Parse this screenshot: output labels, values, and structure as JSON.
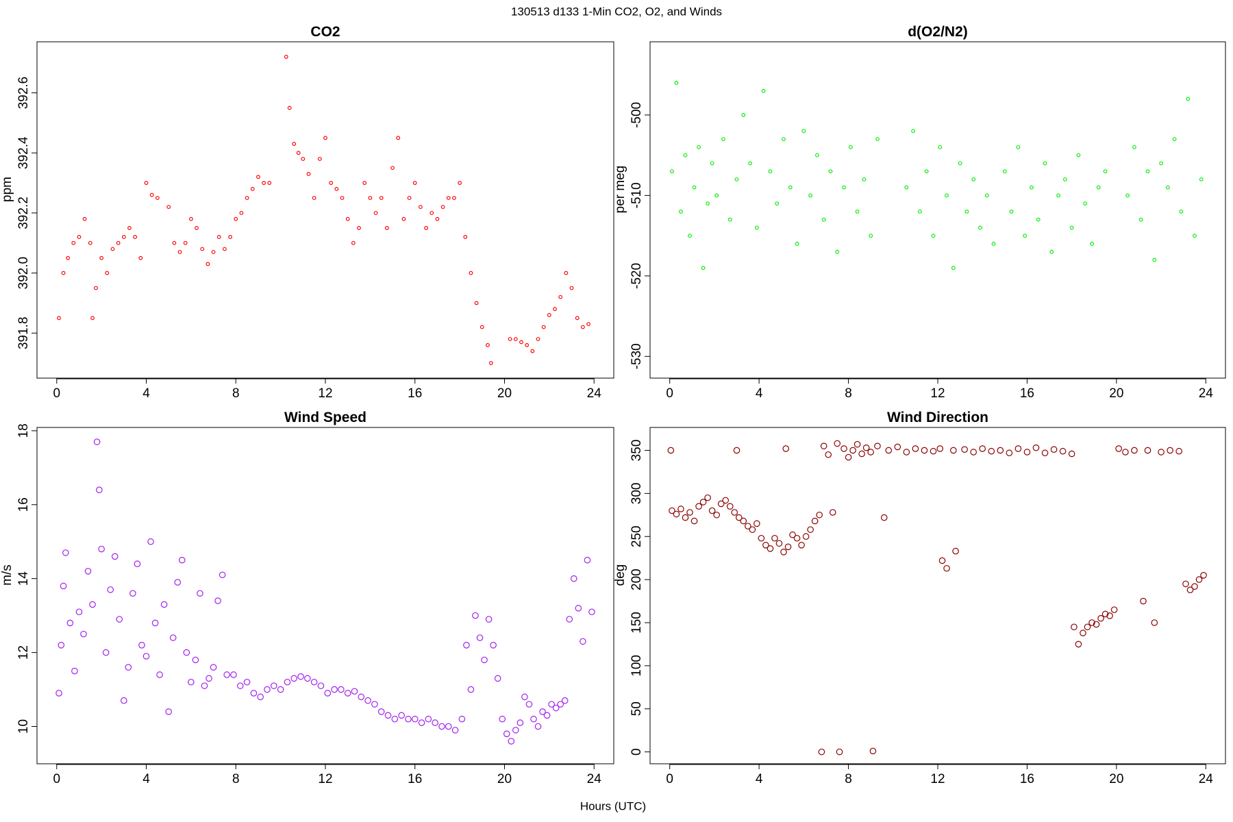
{
  "title": "130513   d133   1-Min CO2, O2, and Winds",
  "xlabel": "Hours (UTC)",
  "chart_data": [
    {
      "type": "scatter",
      "title": "CO2",
      "ylabel": "ppm",
      "color": "#ff0000",
      "xlim": [
        -0.88,
        24.88
      ],
      "ylim": [
        391.65,
        392.77
      ],
      "xticks": [
        0,
        4,
        8,
        12,
        16,
        20,
        24
      ],
      "yticks": [
        391.8,
        {
          "value": 392,
          "label": "392.0"
        },
        392.2,
        392.4,
        392.6
      ],
      "x": [
        0.1,
        0.3,
        0.5,
        0.75,
        1.0,
        1.25,
        1.5,
        1.6,
        1.75,
        2.0,
        2.25,
        2.5,
        2.75,
        3.0,
        3.25,
        3.5,
        3.75,
        4.0,
        4.25,
        4.5,
        5.0,
        5.25,
        5.5,
        5.75,
        6.0,
        6.25,
        6.5,
        6.75,
        7.0,
        7.25,
        7.5,
        7.75,
        8.0,
        8.25,
        8.5,
        8.75,
        9.0,
        9.25,
        9.5,
        10.25,
        10.4,
        10.6,
        10.8,
        11.0,
        11.25,
        11.5,
        11.75,
        12.0,
        12.25,
        12.5,
        12.75,
        13.0,
        13.25,
        13.5,
        13.75,
        14.0,
        14.25,
        14.5,
        14.75,
        15.0,
        15.25,
        15.5,
        15.75,
        16.0,
        16.25,
        16.5,
        16.75,
        17.0,
        17.25,
        17.5,
        17.75,
        18.0,
        18.25,
        18.5,
        18.75,
        19.0,
        19.25,
        19.4,
        20.25,
        20.5,
        20.75,
        21.0,
        21.25,
        21.5,
        21.75,
        22.0,
        22.25,
        22.5,
        22.75,
        23.0,
        23.25,
        23.5,
        23.75
      ],
      "values": [
        391.85,
        392.0,
        392.05,
        392.1,
        392.12,
        392.18,
        392.1,
        391.85,
        391.95,
        392.05,
        392.0,
        392.08,
        392.1,
        392.12,
        392.15,
        392.12,
        392.05,
        392.3,
        392.26,
        392.25,
        392.22,
        392.1,
        392.07,
        392.1,
        392.18,
        392.15,
        392.08,
        392.03,
        392.07,
        392.12,
        392.08,
        392.12,
        392.18,
        392.2,
        392.25,
        392.28,
        392.32,
        392.3,
        392.3,
        392.72,
        392.55,
        392.43,
        392.4,
        392.38,
        392.33,
        392.25,
        392.38,
        392.45,
        392.3,
        392.28,
        392.25,
        392.18,
        392.1,
        392.15,
        392.3,
        392.25,
        392.2,
        392.25,
        392.15,
        392.35,
        392.45,
        392.18,
        392.25,
        392.3,
        392.22,
        392.15,
        392.2,
        392.18,
        392.22,
        392.25,
        392.25,
        392.3,
        392.12,
        392.0,
        391.9,
        391.82,
        391.76,
        391.7,
        391.78,
        391.78,
        391.77,
        391.76,
        391.74,
        391.78,
        391.82,
        391.86,
        391.88,
        391.92,
        392.0,
        391.95,
        391.85,
        391.82,
        391.83
      ]
    },
    {
      "type": "scatter",
      "title": "d(O2/N2)",
      "ylabel": "per meg",
      "color": "#00ee00",
      "xlim": [
        -0.88,
        24.88
      ],
      "ylim": [
        -532.7,
        -490.9
      ],
      "xticks": [
        0,
        4,
        8,
        12,
        16,
        20,
        24
      ],
      "yticks": [
        -530,
        -520,
        -510,
        -500
      ],
      "x": [
        0.1,
        0.3,
        0.5,
        0.7,
        0.9,
        1.1,
        1.3,
        1.5,
        1.7,
        1.9,
        2.1,
        2.4,
        2.7,
        3.0,
        3.3,
        3.6,
        3.9,
        4.2,
        4.5,
        4.8,
        5.1,
        5.4,
        5.7,
        6.0,
        6.3,
        6.6,
        6.9,
        7.2,
        7.5,
        7.8,
        8.1,
        8.4,
        8.7,
        9.0,
        9.3,
        10.6,
        10.9,
        11.2,
        11.5,
        11.8,
        12.1,
        12.4,
        12.7,
        13.0,
        13.3,
        13.6,
        13.9,
        14.2,
        14.5,
        15.0,
        15.3,
        15.6,
        15.9,
        16.2,
        16.5,
        16.8,
        17.1,
        17.4,
        17.7,
        18.0,
        18.3,
        18.6,
        18.9,
        19.2,
        19.5,
        20.5,
        20.8,
        21.1,
        21.4,
        21.7,
        22.0,
        22.3,
        22.6,
        22.9,
        23.2,
        23.5,
        23.8
      ],
      "values": [
        -507,
        -496,
        -512,
        -505,
        -515,
        -509,
        -504,
        -519,
        -511,
        -506,
        -510,
        -503,
        -513,
        -508,
        -500,
        -506,
        -514,
        -497,
        -507,
        -511,
        -503,
        -509,
        -516,
        -502,
        -510,
        -505,
        -513,
        -507,
        -517,
        -509,
        -504,
        -512,
        -508,
        -515,
        -503,
        -509,
        -502,
        -512,
        -507,
        -515,
        -504,
        -510,
        -519,
        -506,
        -512,
        -508,
        -514,
        -510,
        -516,
        -507,
        -512,
        -504,
        -515,
        -509,
        -513,
        -506,
        -517,
        -510,
        -508,
        -514,
        -505,
        -511,
        -516,
        -509,
        -507,
        -510,
        -504,
        -513,
        -507,
        -518,
        -506,
        -509,
        -503,
        -512,
        -498,
        -515,
        -508
      ]
    },
    {
      "type": "scatter",
      "title": "Wind Speed",
      "ylabel": "m/s",
      "color": "#a020f0",
      "xlim": [
        -0.88,
        24.88
      ],
      "ylim": [
        8.99,
        18.09
      ],
      "xticks": [
        0,
        4,
        8,
        12,
        16,
        20,
        24
      ],
      "yticks": [
        10,
        12,
        14,
        16,
        18
      ],
      "x": [
        0.1,
        0.2,
        0.3,
        0.4,
        0.6,
        0.8,
        1.0,
        1.2,
        1.4,
        1.6,
        1.8,
        1.9,
        2.0,
        2.2,
        2.4,
        2.6,
        2.8,
        3.0,
        3.2,
        3.4,
        3.6,
        3.8,
        4.0,
        4.2,
        4.4,
        4.6,
        4.8,
        5.0,
        5.2,
        5.4,
        5.6,
        5.8,
        6.0,
        6.2,
        6.4,
        6.6,
        6.8,
        7.0,
        7.2,
        7.4,
        7.6,
        7.9,
        8.2,
        8.5,
        8.8,
        9.1,
        9.4,
        9.7,
        10.0,
        10.3,
        10.6,
        10.9,
        11.2,
        11.5,
        11.8,
        12.1,
        12.4,
        12.7,
        13.0,
        13.3,
        13.6,
        13.9,
        14.2,
        14.5,
        14.8,
        15.1,
        15.4,
        15.7,
        16.0,
        16.3,
        16.6,
        16.9,
        17.2,
        17.5,
        17.8,
        18.1,
        18.3,
        18.5,
        18.7,
        18.9,
        19.1,
        19.3,
        19.5,
        19.7,
        19.9,
        20.1,
        20.3,
        20.5,
        20.7,
        20.9,
        21.1,
        21.3,
        21.5,
        21.7,
        21.9,
        22.1,
        22.3,
        22.5,
        22.7,
        22.9,
        23.1,
        23.3,
        23.5,
        23.7,
        23.9
      ],
      "values": [
        10.9,
        12.2,
        13.8,
        14.7,
        12.8,
        11.5,
        13.1,
        12.5,
        14.2,
        13.3,
        17.7,
        16.4,
        14.8,
        12.0,
        13.7,
        14.6,
        12.9,
        10.7,
        11.6,
        13.6,
        14.4,
        12.2,
        11.9,
        15.0,
        12.8,
        11.4,
        13.3,
        10.4,
        12.4,
        13.9,
        14.5,
        12.0,
        11.2,
        11.8,
        13.6,
        11.1,
        11.3,
        11.6,
        13.4,
        14.1,
        11.4,
        11.4,
        11.1,
        11.2,
        10.9,
        10.8,
        11.0,
        11.1,
        11.0,
        11.2,
        11.3,
        11.35,
        11.3,
        11.2,
        11.1,
        10.9,
        11.0,
        11.0,
        10.9,
        10.95,
        10.8,
        10.7,
        10.6,
        10.4,
        10.3,
        10.2,
        10.3,
        10.2,
        10.2,
        10.1,
        10.2,
        10.1,
        10.0,
        10.0,
        9.9,
        10.2,
        12.2,
        11.0,
        13.0,
        12.4,
        11.8,
        12.9,
        12.2,
        11.3,
        10.2,
        9.8,
        9.6,
        9.9,
        10.1,
        10.8,
        10.6,
        10.2,
        10.0,
        10.4,
        10.3,
        10.6,
        10.5,
        10.6,
        10.7,
        12.9,
        14.0,
        13.2,
        12.3,
        14.5,
        13.1
      ]
    },
    {
      "type": "scatter",
      "title": "Wind Direction",
      "ylabel": "deg",
      "color": "#8b0000",
      "xlim": [
        -0.88,
        24.88
      ],
      "ylim": [
        -13.8,
        376.6
      ],
      "xticks": [
        0,
        4,
        8,
        12,
        16,
        20,
        24
      ],
      "yticks": [
        0,
        50,
        100,
        150,
        200,
        250,
        300,
        350
      ],
      "x": [
        0.05,
        0.1,
        0.3,
        0.5,
        0.7,
        0.9,
        1.1,
        1.3,
        1.5,
        1.7,
        1.9,
        2.1,
        2.3,
        2.5,
        2.7,
        2.9,
        3.0,
        3.1,
        3.3,
        3.5,
        3.7,
        3.9,
        4.1,
        4.3,
        4.5,
        4.7,
        4.9,
        5.1,
        5.2,
        5.3,
        5.5,
        5.7,
        5.9,
        6.1,
        6.3,
        6.5,
        6.7,
        6.8,
        6.9,
        7.1,
        7.3,
        7.5,
        7.6,
        7.8,
        8.0,
        8.2,
        8.4,
        8.6,
        8.8,
        9.0,
        9.1,
        9.3,
        9.6,
        9.8,
        10.2,
        10.6,
        11.0,
        11.4,
        11.8,
        12.1,
        12.2,
        12.4,
        12.7,
        12.8,
        13.2,
        13.6,
        14.0,
        14.4,
        14.8,
        15.2,
        15.6,
        16.0,
        16.4,
        16.8,
        17.2,
        17.6,
        18.0,
        18.1,
        18.3,
        18.5,
        18.7,
        18.9,
        19.1,
        19.3,
        19.5,
        19.7,
        19.9,
        20.1,
        20.4,
        20.8,
        21.2,
        21.4,
        21.7,
        22.0,
        22.4,
        22.8,
        23.1,
        23.3,
        23.5,
        23.7,
        23.9
      ],
      "values": [
        350,
        280,
        276,
        282,
        272,
        278,
        268,
        285,
        290,
        295,
        280,
        275,
        288,
        292,
        285,
        278,
        350,
        272,
        268,
        262,
        258,
        265,
        248,
        240,
        236,
        248,
        242,
        232,
        352,
        238,
        252,
        248,
        240,
        250,
        258,
        268,
        275,
        0,
        355,
        345,
        278,
        358,
        0,
        352,
        342,
        350,
        357,
        346,
        353,
        348,
        1,
        355,
        272,
        350,
        354,
        348,
        352,
        350,
        349,
        352,
        222,
        213,
        350,
        233,
        351,
        348,
        352,
        349,
        350,
        347,
        352,
        348,
        353,
        347,
        351,
        349,
        346,
        145,
        125,
        138,
        145,
        150,
        148,
        155,
        160,
        158,
        165,
        352,
        348,
        350,
        175,
        350,
        150,
        348,
        350,
        349,
        195,
        188,
        192,
        200,
        205
      ]
    }
  ]
}
